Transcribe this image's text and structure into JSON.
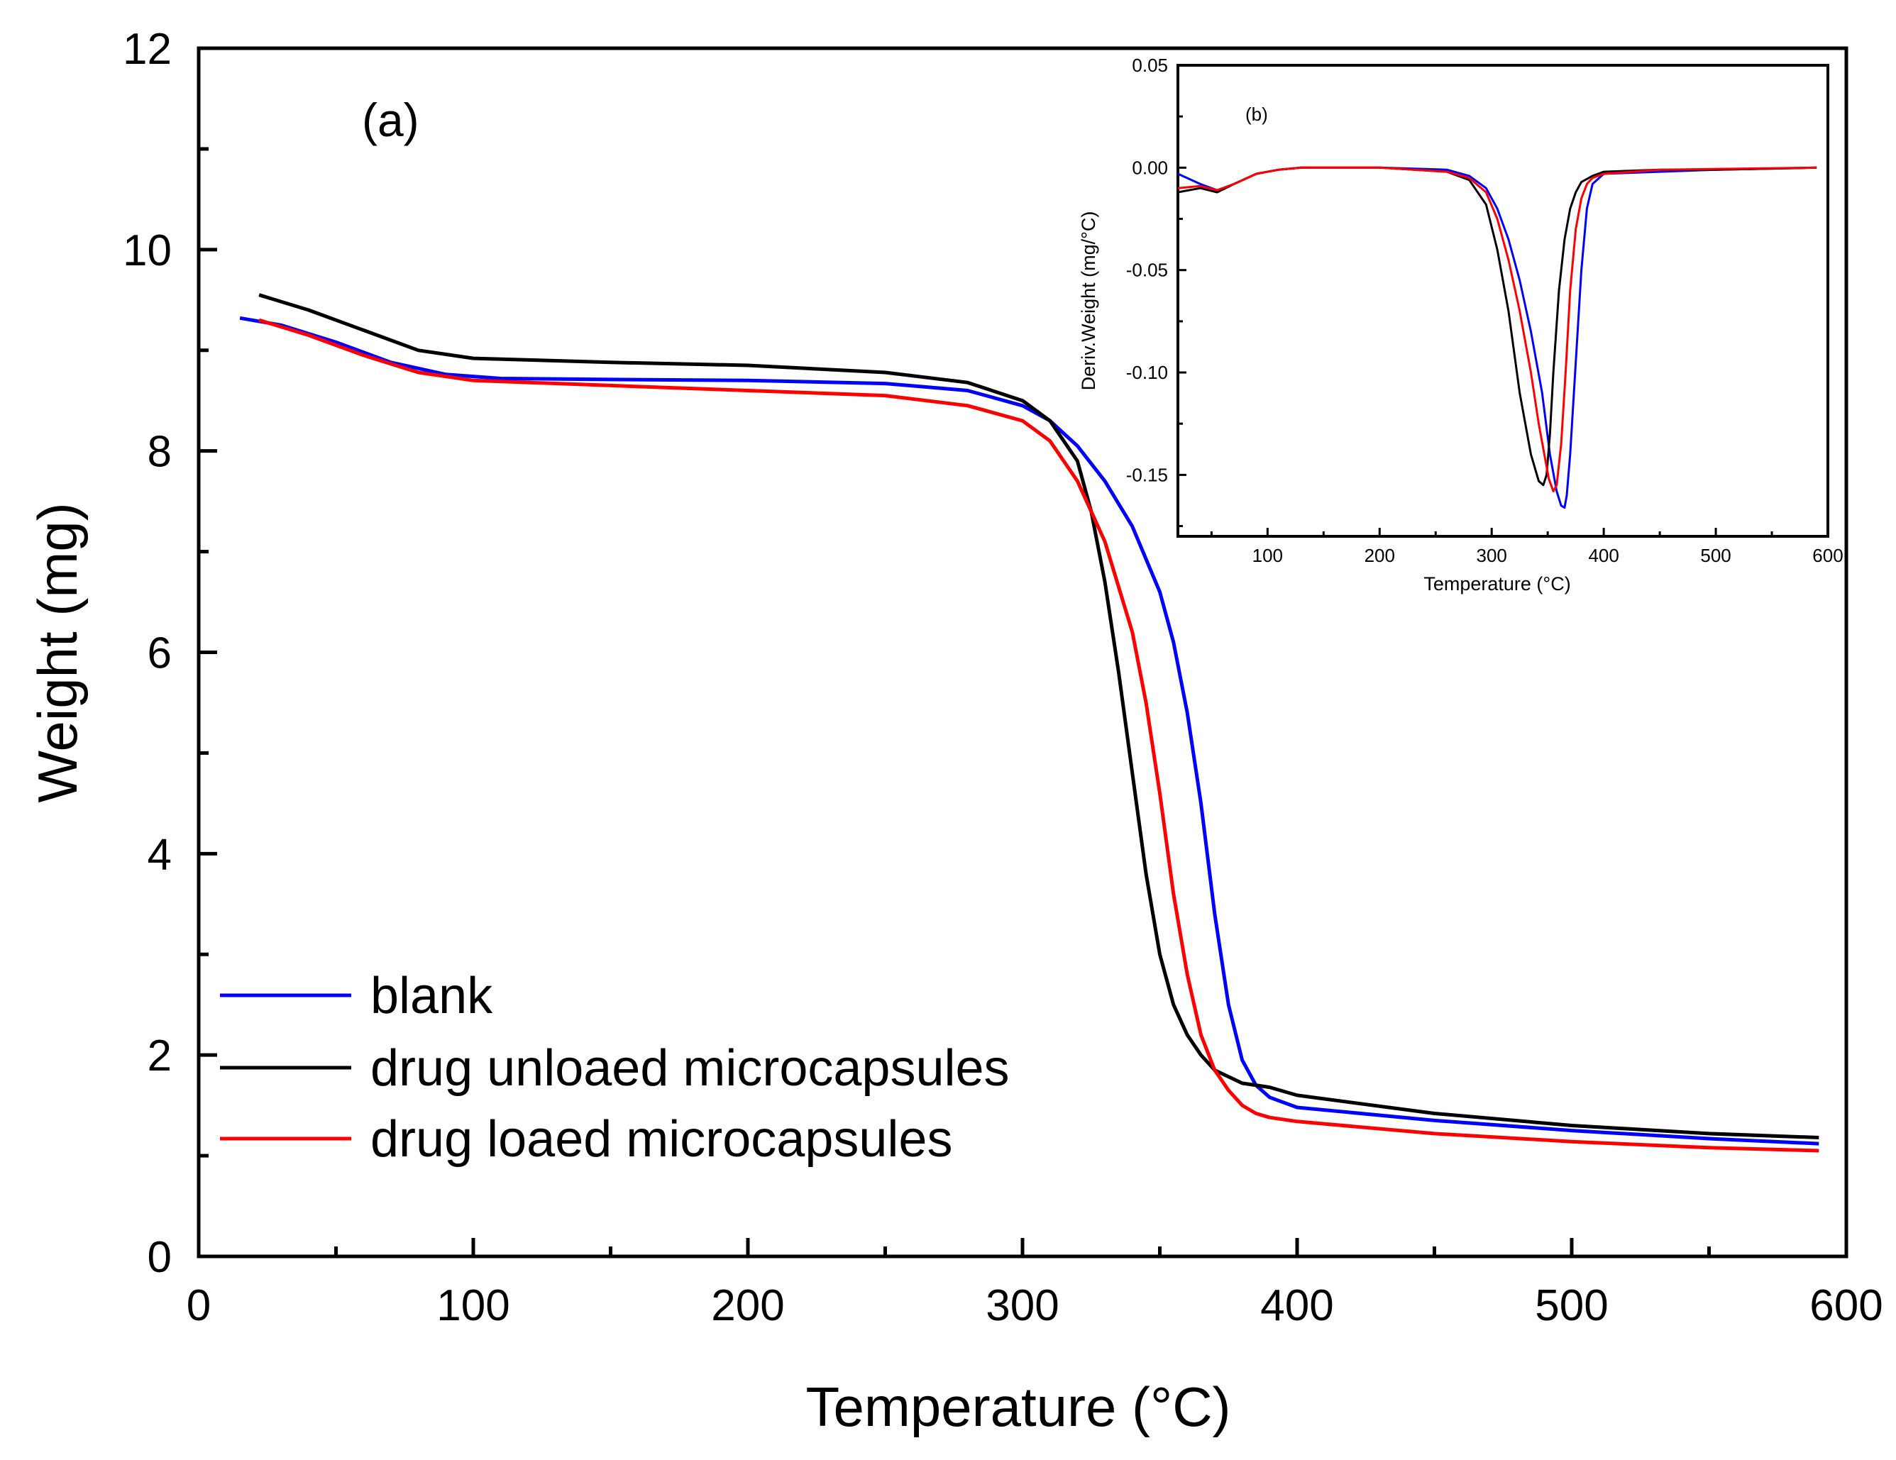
{
  "chart_data": [
    {
      "type": "line",
      "panel_label": "(a)",
      "xlabel": "Temperature",
      "xunit": "(°C)",
      "ylabel": "Weight (mg)",
      "xlim": [
        0,
        600
      ],
      "ylim": [
        0,
        12
      ],
      "xticks": [
        0,
        100,
        200,
        300,
        400,
        500,
        600
      ],
      "yticks": [
        0,
        2,
        4,
        6,
        8,
        10,
        12
      ],
      "grid": false,
      "legend_position": "bottom-left",
      "series": [
        {
          "name": "blank",
          "color": "#0000ff",
          "x": [
            15,
            30,
            50,
            70,
            90,
            110,
            150,
            200,
            250,
            280,
            300,
            310,
            320,
            330,
            340,
            350,
            355,
            360,
            365,
            370,
            375,
            380,
            385,
            390,
            400,
            450,
            500,
            550,
            590
          ],
          "y": [
            9.32,
            9.25,
            9.08,
            8.88,
            8.76,
            8.72,
            8.71,
            8.7,
            8.67,
            8.6,
            8.45,
            8.3,
            8.05,
            7.7,
            7.25,
            6.6,
            6.1,
            5.4,
            4.5,
            3.4,
            2.5,
            1.95,
            1.7,
            1.58,
            1.48,
            1.35,
            1.25,
            1.17,
            1.12
          ]
        },
        {
          "name": "drug unloaed microcapsules",
          "color": "#000000",
          "x": [
            22,
            40,
            60,
            80,
            100,
            150,
            200,
            250,
            280,
            300,
            310,
            320,
            325,
            330,
            335,
            340,
            345,
            350,
            355,
            360,
            365,
            370,
            380,
            390,
            400,
            450,
            500,
            550,
            590
          ],
          "y": [
            9.55,
            9.4,
            9.2,
            9.0,
            8.92,
            8.88,
            8.85,
            8.78,
            8.68,
            8.5,
            8.3,
            7.9,
            7.4,
            6.7,
            5.8,
            4.8,
            3.8,
            3.0,
            2.5,
            2.2,
            2.0,
            1.85,
            1.72,
            1.68,
            1.6,
            1.42,
            1.3,
            1.22,
            1.18
          ]
        },
        {
          "name": "drug loaed microcapsules",
          "color": "#ff0000",
          "x": [
            22,
            40,
            60,
            80,
            100,
            150,
            200,
            250,
            280,
            300,
            310,
            320,
            330,
            340,
            345,
            350,
            355,
            360,
            365,
            370,
            375,
            380,
            385,
            390,
            400,
            450,
            500,
            550,
            590
          ],
          "y": [
            9.3,
            9.15,
            8.95,
            8.78,
            8.7,
            8.65,
            8.6,
            8.55,
            8.45,
            8.3,
            8.1,
            7.7,
            7.1,
            6.2,
            5.5,
            4.6,
            3.6,
            2.8,
            2.2,
            1.85,
            1.65,
            1.5,
            1.42,
            1.38,
            1.34,
            1.22,
            1.14,
            1.08,
            1.05
          ]
        }
      ]
    },
    {
      "type": "line",
      "panel_label": "(b)",
      "xlabel": "Temperature",
      "xunit": "(°C)",
      "ylabel": "Deriv.Weight (mg/°C)",
      "xlim": [
        20,
        600
      ],
      "ylim": [
        -0.18,
        0.05
      ],
      "xticks": [
        100,
        200,
        300,
        400,
        500,
        600
      ],
      "yticks": [
        0.05,
        0.0,
        -0.05,
        -0.1,
        -0.15
      ],
      "ytick_labels": [
        "0.05",
        "0.00",
        "-0.05",
        "-0.10",
        "-0.15"
      ],
      "grid": false,
      "series": [
        {
          "name": "blank",
          "color": "#0000ff",
          "x": [
            20,
            40,
            55,
            70,
            90,
            110,
            130,
            200,
            260,
            280,
            295,
            305,
            315,
            325,
            335,
            345,
            352,
            358,
            362,
            365,
            367,
            370,
            375,
            380,
            385,
            390,
            400,
            450,
            500,
            590
          ],
          "y": [
            -0.003,
            -0.008,
            -0.011,
            -0.008,
            -0.003,
            -0.001,
            0.0,
            0.0,
            -0.001,
            -0.004,
            -0.01,
            -0.02,
            -0.035,
            -0.055,
            -0.08,
            -0.11,
            -0.14,
            -0.158,
            -0.165,
            -0.166,
            -0.16,
            -0.14,
            -0.095,
            -0.05,
            -0.02,
            -0.008,
            -0.003,
            -0.002,
            -0.001,
            0.0
          ]
        },
        {
          "name": "drug unloaed microcapsules",
          "color": "#000000",
          "x": [
            20,
            40,
            55,
            70,
            90,
            110,
            130,
            200,
            260,
            280,
            295,
            305,
            315,
            325,
            335,
            342,
            346,
            349,
            352,
            355,
            360,
            365,
            370,
            375,
            380,
            390,
            400,
            450,
            500,
            590
          ],
          "y": [
            -0.012,
            -0.01,
            -0.012,
            -0.008,
            -0.003,
            -0.001,
            0.0,
            0.0,
            -0.002,
            -0.006,
            -0.018,
            -0.04,
            -0.07,
            -0.11,
            -0.14,
            -0.153,
            -0.155,
            -0.15,
            -0.13,
            -0.1,
            -0.06,
            -0.035,
            -0.02,
            -0.012,
            -0.007,
            -0.004,
            -0.002,
            -0.001,
            -0.001,
            0.0
          ]
        },
        {
          "name": "drug loaed microcapsules",
          "color": "#ff0000",
          "x": [
            20,
            40,
            55,
            70,
            90,
            110,
            130,
            200,
            260,
            280,
            295,
            305,
            315,
            325,
            335,
            342,
            347,
            351,
            355,
            358,
            362,
            366,
            370,
            375,
            380,
            385,
            390,
            400,
            450,
            590
          ],
          "y": [
            -0.01,
            -0.009,
            -0.011,
            -0.008,
            -0.003,
            -0.001,
            0.0,
            0.0,
            -0.002,
            -0.005,
            -0.012,
            -0.025,
            -0.045,
            -0.07,
            -0.1,
            -0.125,
            -0.14,
            -0.152,
            -0.158,
            -0.155,
            -0.135,
            -0.1,
            -0.06,
            -0.03,
            -0.015,
            -0.008,
            -0.005,
            -0.003,
            -0.001,
            0.0
          ]
        }
      ]
    }
  ]
}
